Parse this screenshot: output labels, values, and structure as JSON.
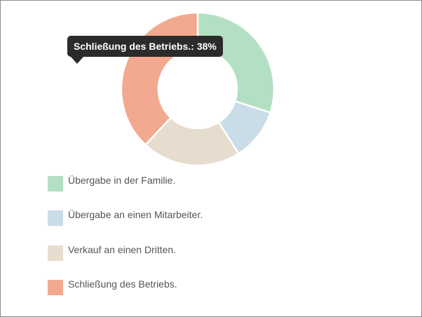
{
  "chart_data": {
    "type": "pie",
    "variant": "doughnut",
    "categories": [
      "Übergabe in der Familie.",
      "Übergabe an einen Mitarbeiter.",
      "Verkauf an einen Dritten.",
      "Schließung des Betriebs."
    ],
    "values": [
      30,
      11,
      21,
      38
    ],
    "colors": [
      "#b3e0c2",
      "#c9dce7",
      "#e6ddce",
      "#f2a98f"
    ],
    "legend_position": "bottom-left",
    "tooltip": {
      "text": "Schließung des Betriebs.: 38%",
      "series_index": 3
    }
  }
}
